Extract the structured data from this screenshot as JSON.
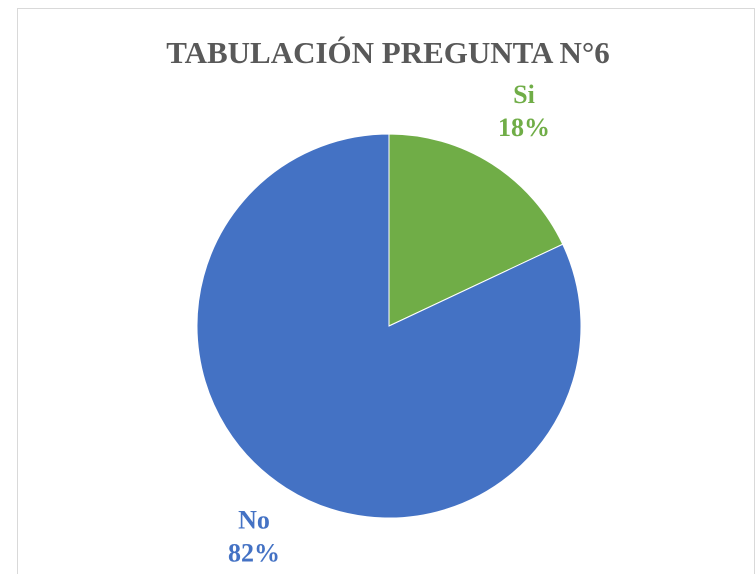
{
  "chart_data": {
    "type": "pie",
    "title": "TABULACIÓN PREGUNTA N°6",
    "categories": [
      "Si",
      "No"
    ],
    "values": [
      18,
      82
    ],
    "value_labels": [
      "18%",
      "82%"
    ],
    "colors": [
      "#70ad47",
      "#4472c4"
    ]
  }
}
